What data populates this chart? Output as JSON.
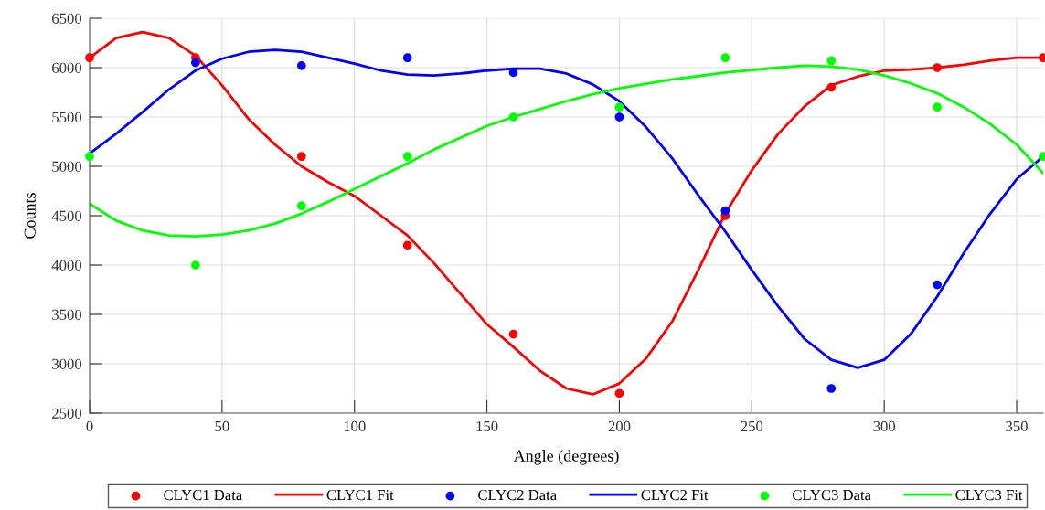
{
  "chart_data": {
    "type": "line",
    "xlabel": "Angle (degrees)",
    "ylabel": "Counts",
    "xlim": [
      0,
      360
    ],
    "xticks": [
      0,
      50,
      100,
      150,
      200,
      250,
      300,
      350
    ],
    "ylim": [
      2500,
      6500
    ],
    "yticks": [
      2500,
      3000,
      3500,
      4000,
      4500,
      5000,
      5500,
      6000,
      6500
    ],
    "grid": true,
    "legend": "bottom",
    "series": [
      {
        "name": "CLYC1 Data",
        "type": "scatter",
        "marker": "circle",
        "color": "#ff0000",
        "x": [
          0,
          40,
          80,
          120,
          160,
          200,
          240,
          280,
          320,
          360
        ],
        "values": [
          6100,
          6100,
          5100,
          4200,
          3300,
          2700,
          4500,
          5800,
          6000,
          6100
        ]
      },
      {
        "name": "CLYC1 Fit",
        "color": "#ff0000",
        "x": [
          0,
          10,
          20,
          30,
          40,
          50,
          60,
          70,
          80,
          90,
          100,
          110,
          120,
          130,
          140,
          150,
          160,
          170,
          180,
          190,
          200,
          210,
          220,
          230,
          240,
          250,
          260,
          270,
          280,
          290,
          300,
          310,
          320,
          330,
          340,
          350,
          360
        ],
        "values": [
          6100,
          6300,
          6360,
          6300,
          6120,
          5820,
          5480,
          5220,
          5000,
          4840,
          4700,
          4500,
          4300,
          4020,
          3710,
          3400,
          3170,
          2930,
          2750,
          2690,
          2800,
          3050,
          3430,
          3960,
          4520,
          4960,
          5330,
          5610,
          5820,
          5910,
          5970,
          5980,
          6000,
          6030,
          6070,
          6100,
          6100
        ]
      },
      {
        "name": "CLYC2 Data",
        "type": "scatter",
        "marker": "circle",
        "color": "#0000ff",
        "x": [
          40,
          80,
          120,
          160,
          200,
          240,
          280,
          320
        ],
        "values": [
          6050,
          6020,
          6100,
          5950,
          5500,
          4550,
          2750,
          3800
        ]
      },
      {
        "name": "CLYC2 Fit",
        "color": "#0000ff",
        "x": [
          0,
          10,
          20,
          30,
          40,
          50,
          60,
          70,
          80,
          90,
          100,
          110,
          120,
          130,
          140,
          150,
          160,
          170,
          180,
          190,
          200,
          210,
          220,
          230,
          240,
          250,
          260,
          270,
          280,
          290,
          300,
          310,
          320,
          330,
          340,
          350,
          360
        ],
        "values": [
          5130,
          5330,
          5550,
          5780,
          5970,
          6090,
          6160,
          6180,
          6160,
          6100,
          6040,
          5970,
          5930,
          5920,
          5940,
          5970,
          5990,
          5990,
          5940,
          5830,
          5660,
          5400,
          5080,
          4700,
          4340,
          3950,
          3580,
          3250,
          3040,
          2960,
          3040,
          3300,
          3680,
          4120,
          4520,
          4870,
          5100
        ]
      },
      {
        "name": "CLYC3 Data",
        "type": "scatter",
        "marker": "circle",
        "color": "#00ff00",
        "x": [
          0,
          40,
          80,
          120,
          160,
          200,
          240,
          280,
          320,
          360
        ],
        "values": [
          5100,
          4000,
          4600,
          5100,
          5500,
          5600,
          6100,
          6070,
          5600,
          5100
        ]
      },
      {
        "name": "CLYC3 Fit",
        "color": "#00ff00",
        "x": [
          0,
          10,
          20,
          30,
          40,
          50,
          60,
          70,
          80,
          90,
          100,
          110,
          120,
          130,
          140,
          150,
          160,
          170,
          180,
          190,
          200,
          220,
          240,
          260,
          270,
          280,
          290,
          300,
          310,
          320,
          330,
          340,
          350,
          360
        ],
        "values": [
          4620,
          4450,
          4350,
          4300,
          4290,
          4310,
          4350,
          4420,
          4520,
          4640,
          4770,
          4900,
          5030,
          5170,
          5290,
          5410,
          5500,
          5580,
          5660,
          5730,
          5790,
          5880,
          5950,
          6000,
          6020,
          6010,
          5980,
          5920,
          5840,
          5740,
          5600,
          5430,
          5220,
          4930
        ]
      }
    ]
  }
}
